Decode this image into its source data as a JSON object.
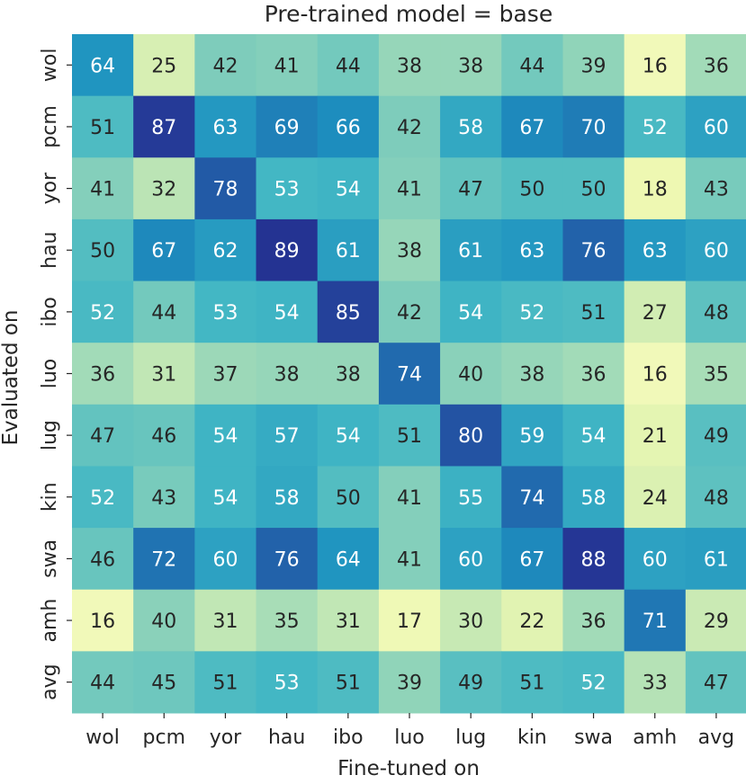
{
  "chart_data": {
    "type": "heatmap",
    "title": "Pre-trained model = base",
    "xlabel": "Fine-tuned on",
    "ylabel": "Evaluated on",
    "x_categories": [
      "wol",
      "pcm",
      "yor",
      "hau",
      "ibo",
      "luo",
      "lug",
      "kin",
      "swa",
      "amh",
      "avg"
    ],
    "y_categories": [
      "wol",
      "pcm",
      "yor",
      "hau",
      "ibo",
      "luo",
      "lug",
      "kin",
      "swa",
      "amh",
      "avg"
    ],
    "values": [
      [
        64,
        25,
        42,
        41,
        44,
        38,
        38,
        44,
        39,
        16,
        36
      ],
      [
        51,
        87,
        63,
        69,
        66,
        42,
        58,
        67,
        70,
        52,
        60
      ],
      [
        41,
        32,
        78,
        53,
        54,
        41,
        47,
        50,
        50,
        18,
        43
      ],
      [
        50,
        67,
        62,
        89,
        61,
        38,
        61,
        63,
        76,
        63,
        60
      ],
      [
        52,
        44,
        53,
        54,
        85,
        42,
        54,
        52,
        51,
        27,
        48
      ],
      [
        36,
        31,
        37,
        38,
        38,
        74,
        40,
        38,
        36,
        16,
        35
      ],
      [
        47,
        46,
        54,
        57,
        54,
        51,
        80,
        59,
        54,
        21,
        49
      ],
      [
        52,
        43,
        54,
        58,
        50,
        41,
        55,
        74,
        58,
        24,
        48
      ],
      [
        46,
        72,
        60,
        76,
        64,
        41,
        60,
        67,
        88,
        60,
        61
      ],
      [
        16,
        40,
        31,
        35,
        31,
        17,
        30,
        22,
        36,
        71,
        29
      ],
      [
        44,
        45,
        51,
        53,
        51,
        39,
        49,
        51,
        52,
        33,
        47
      ]
    ],
    "value_range": [
      16,
      89
    ],
    "colormap": "YlGnBu",
    "colorbar": false
  }
}
